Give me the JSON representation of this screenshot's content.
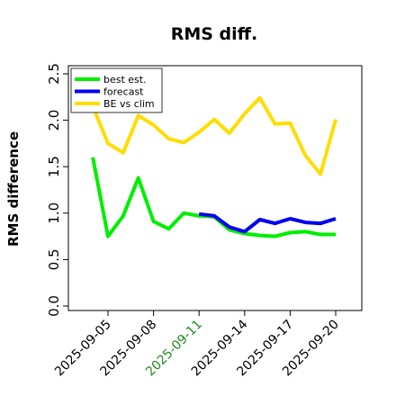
{
  "chart_data": {
    "type": "line",
    "title": "RMS diff.",
    "ylabel": "RMS difference",
    "xlabel": "",
    "ylim": [
      0.0,
      2.5
    ],
    "yticks": [
      "0.0",
      "0.5",
      "1.0",
      "1.5",
      "2.0",
      "2.5"
    ],
    "xtick_labels": [
      "2025-09-05",
      "2025-09-08",
      "2025-09-11",
      "2025-09-14",
      "2025-09-17",
      "2025-09-20"
    ],
    "highlight_tick": "2025-09-11",
    "highlight_color": "#228B22",
    "grid": false,
    "legend_position": "top-left",
    "series": [
      {
        "name": "best est.",
        "color": "#00ee00",
        "x": [
          "2025-09-04",
          "2025-09-05",
          "2025-09-06",
          "2025-09-07",
          "2025-09-08",
          "2025-09-09",
          "2025-09-10",
          "2025-09-11",
          "2025-09-12",
          "2025-09-13",
          "2025-09-14",
          "2025-09-15",
          "2025-09-16",
          "2025-09-17",
          "2025-09-18",
          "2025-09-19",
          "2025-09-20"
        ],
        "values": [
          1.6,
          0.75,
          0.97,
          1.38,
          0.91,
          0.83,
          1.0,
          0.97,
          0.96,
          0.82,
          0.78,
          0.76,
          0.75,
          0.79,
          0.8,
          0.77,
          0.77
        ]
      },
      {
        "name": "forecast",
        "color": "#0000ee",
        "x": [
          "2025-09-11",
          "2025-09-12",
          "2025-09-13",
          "2025-09-14",
          "2025-09-15",
          "2025-09-16",
          "2025-09-17",
          "2025-09-18",
          "2025-09-19",
          "2025-09-20"
        ],
        "values": [
          0.99,
          0.97,
          0.85,
          0.8,
          0.93,
          0.89,
          0.94,
          0.9,
          0.89,
          0.94
        ]
      },
      {
        "name": "BE vs clim",
        "color": "#ffdd00",
        "x": [
          "2025-09-04",
          "2025-09-05",
          "2025-09-06",
          "2025-09-07",
          "2025-09-08",
          "2025-09-09",
          "2025-09-10",
          "2025-09-11",
          "2025-09-12",
          "2025-09-13",
          "2025-09-14",
          "2025-09-15",
          "2025-09-16",
          "2025-09-17",
          "2025-09-18",
          "2025-09-19",
          "2025-09-20"
        ],
        "values": [
          2.15,
          1.75,
          1.65,
          2.05,
          1.95,
          1.8,
          1.76,
          1.87,
          2.01,
          1.86,
          2.07,
          2.24,
          1.96,
          1.97,
          1.62,
          1.42,
          2.01
        ]
      }
    ]
  }
}
